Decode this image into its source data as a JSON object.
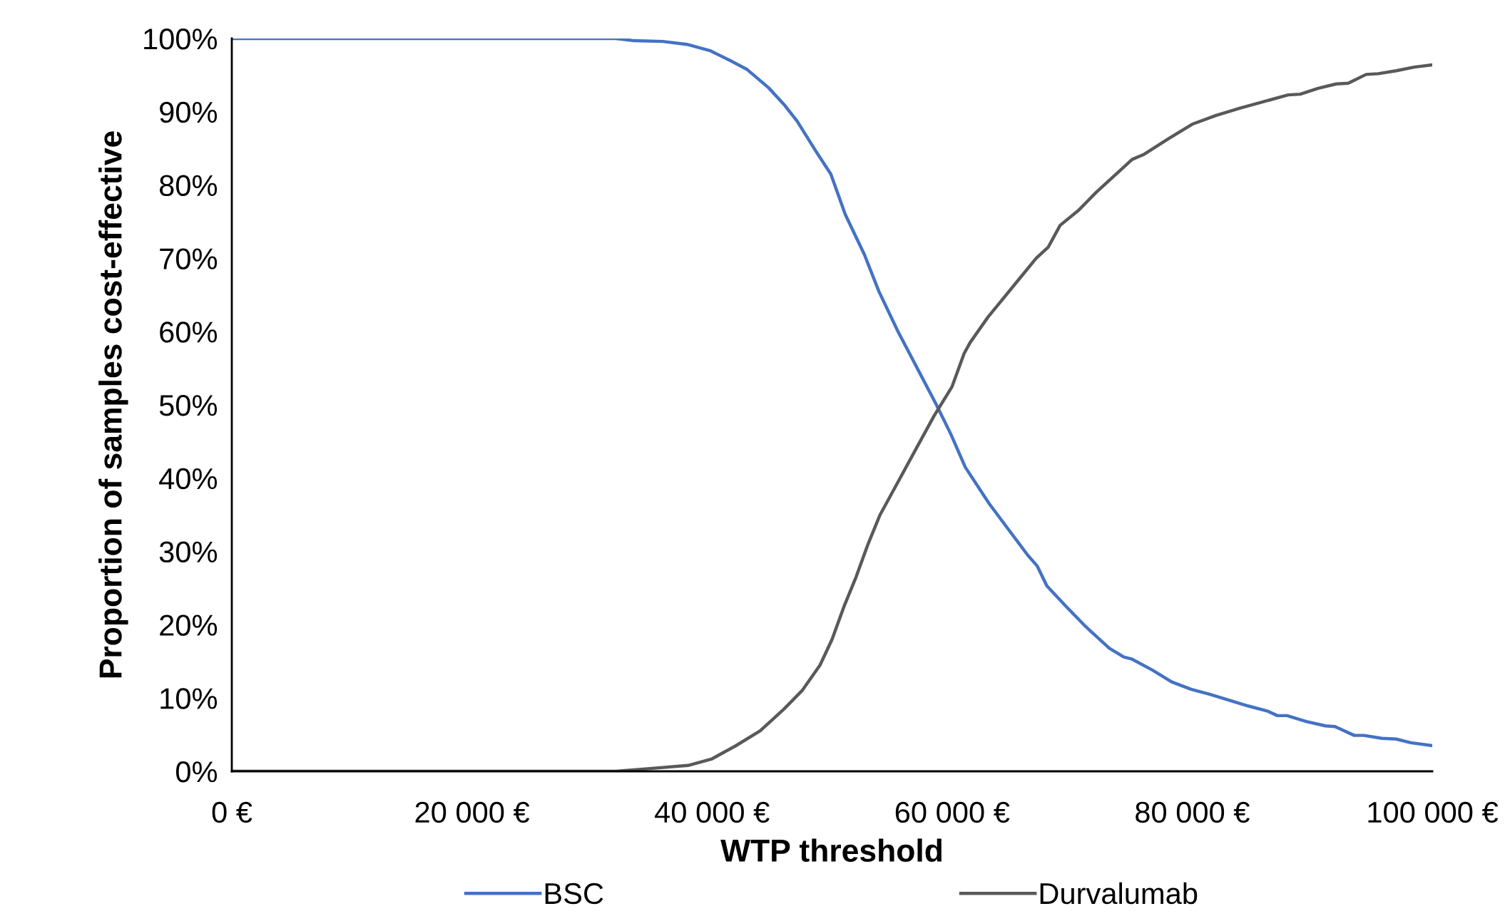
{
  "chart_data": {
    "type": "line",
    "xlabel": "WTP threshold",
    "ylabel": "Proportion of samples cost-effective",
    "xlim": [
      0,
      100000
    ],
    "ylim": [
      0,
      100
    ],
    "xticks": [
      {
        "value": 0,
        "label": "0 €"
      },
      {
        "value": 20000,
        "label": "20 000 €"
      },
      {
        "value": 40000,
        "label": "40 000 €"
      },
      {
        "value": 60000,
        "label": "60 000 €"
      },
      {
        "value": 80000,
        "label": "80 000 €"
      },
      {
        "value": 100000,
        "label": "100 000 €"
      }
    ],
    "yticks": [
      {
        "value": 0,
        "label": "0%"
      },
      {
        "value": 10,
        "label": "10%"
      },
      {
        "value": 20,
        "label": "20%"
      },
      {
        "value": 30,
        "label": "30%"
      },
      {
        "value": 40,
        "label": "40%"
      },
      {
        "value": 50,
        "label": "50%"
      },
      {
        "value": 60,
        "label": "60%"
      },
      {
        "value": 70,
        "label": "70%"
      },
      {
        "value": 80,
        "label": "80%"
      },
      {
        "value": 90,
        "label": "90%"
      },
      {
        "value": 100,
        "label": "100%"
      }
    ],
    "grid": false,
    "legend": "bottom",
    "marker": "none",
    "line_style": "solid",
    "series": [
      {
        "name": "BSC",
        "color": "#4472c4",
        "x": [
          0,
          32000,
          33500,
          35900,
          37900,
          39900,
          41500,
          42900,
          44700,
          46100,
          47100,
          48700,
          49900,
          51100,
          52700,
          53900,
          55500,
          57100,
          58700,
          59900,
          61100,
          63100,
          64700,
          66300,
          67100,
          67900,
          69500,
          71100,
          73100,
          74300,
          75000,
          76700,
          78300,
          79900,
          81500,
          83100,
          84700,
          86300,
          87100,
          87900,
          89500,
          91100,
          91900,
          93500,
          94300,
          95800,
          97000,
          98200,
          100000
        ],
        "values": [
          100,
          100,
          99.7,
          99.6,
          99.2,
          98.3,
          97,
          95.8,
          93.3,
          90.8,
          88.7,
          84.5,
          81.5,
          76,
          70.5,
          65.5,
          60,
          55,
          50,
          46,
          41.5,
          36.5,
          33,
          29.5,
          28,
          25.3,
          22.5,
          19.8,
          16.8,
          15.6,
          15.3,
          13.8,
          12.2,
          11.2,
          10.5,
          9.7,
          8.9,
          8.2,
          7.6,
          7.6,
          6.8,
          6.2,
          6.1,
          4.9,
          4.9,
          4.5,
          4.4,
          3.9,
          3.5
        ]
      },
      {
        "name": "Durvalumab",
        "color": "#595959",
        "x": [
          0,
          32000,
          35000,
          38000,
          40000,
          42000,
          44000,
          46000,
          47500,
          49000,
          50000,
          51000,
          52000,
          53000,
          54000,
          55500,
          57000,
          58500,
          60000,
          61000,
          61500,
          63000,
          64000,
          65500,
          67000,
          68000,
          69000,
          70500,
          72000,
          74000,
          75000,
          76000,
          78000,
          80000,
          82000,
          84000,
          86000,
          88000,
          89000,
          90500,
          92000,
          93000,
          94500,
          95500,
          97000,
          98500,
          100000
        ],
        "values": [
          0,
          0,
          0.4,
          0.8,
          1.7,
          3.5,
          5.5,
          8.5,
          11,
          14.5,
          18,
          22.5,
          26.5,
          31,
          35,
          39.5,
          44,
          48.5,
          52.5,
          57,
          58.5,
          62,
          64,
          67,
          70,
          71.5,
          74.5,
          76.5,
          79,
          82,
          83.5,
          84.2,
          86.3,
          88.3,
          89.5,
          90.5,
          91.4,
          92.3,
          92.4,
          93.2,
          93.8,
          93.9,
          95.1,
          95.2,
          95.6,
          96.1,
          96.4
        ]
      }
    ]
  }
}
